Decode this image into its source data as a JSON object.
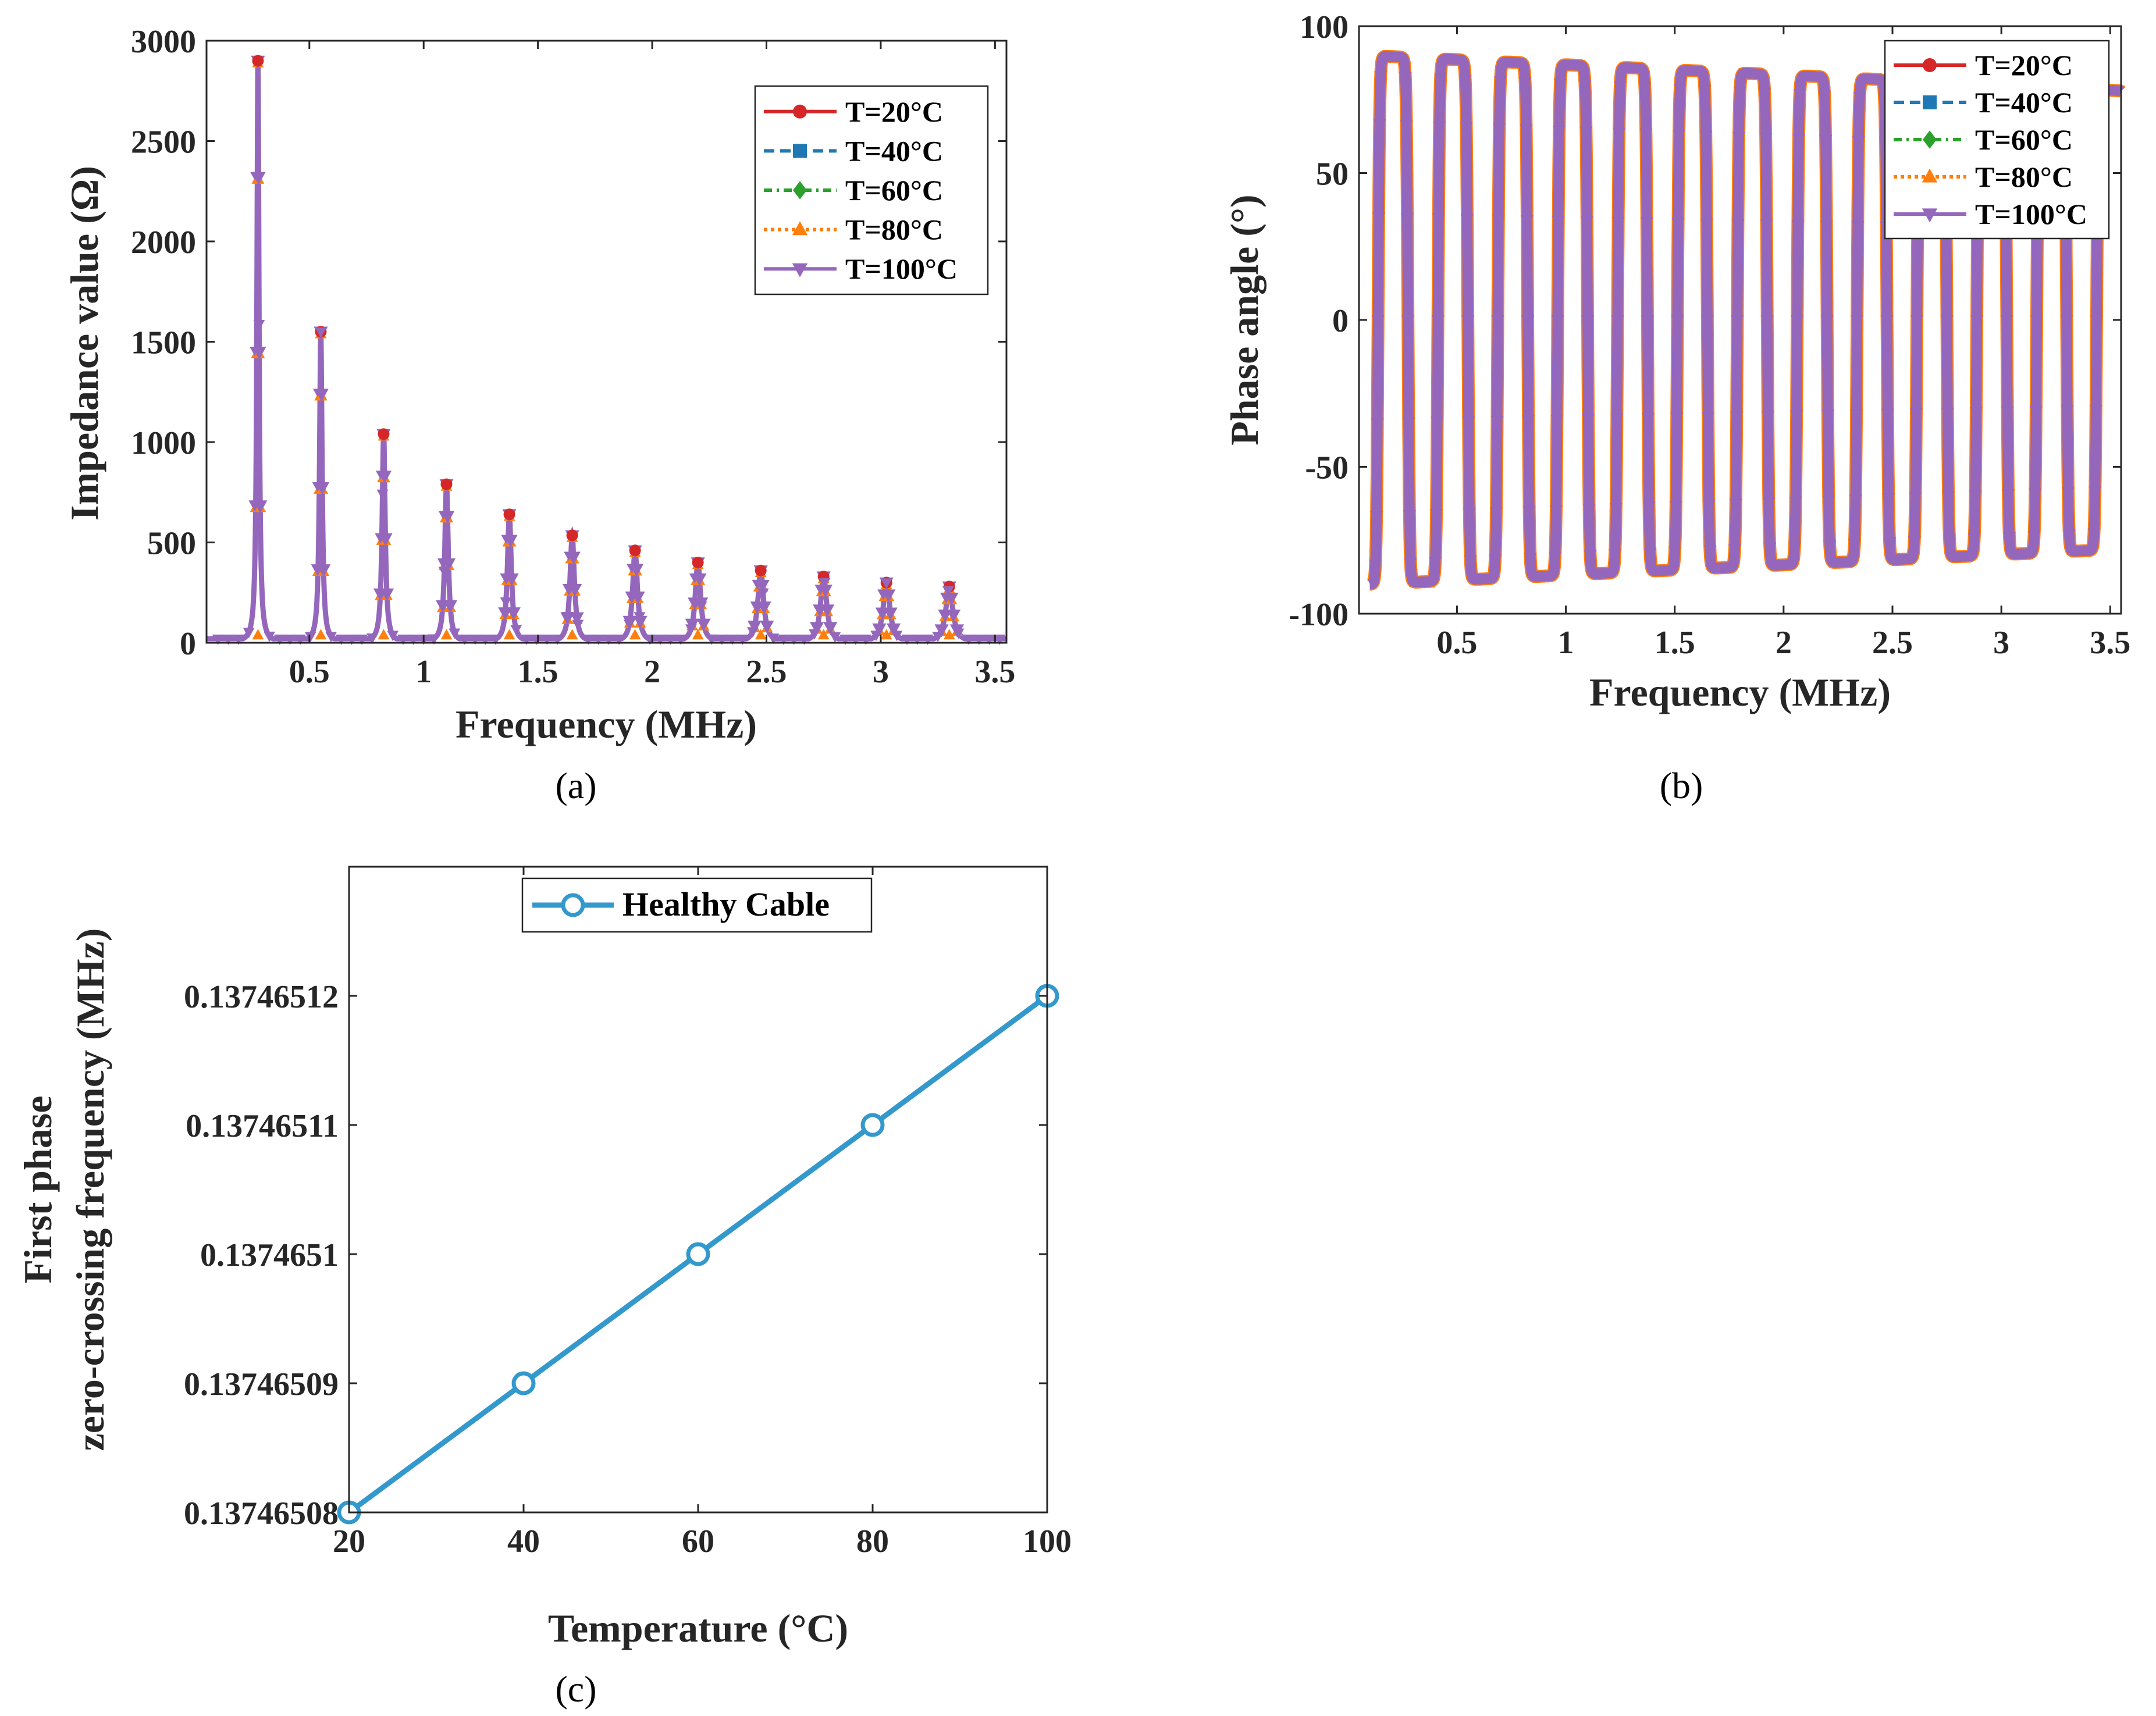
{
  "colors": {
    "T20": "#d62728",
    "T40": "#1f77b4",
    "T60": "#2ca02c",
    "T80": "#ff7f0e",
    "T100": "#9467bd",
    "healthy": "#3399cc"
  },
  "panel_a": {
    "label": "(a)",
    "xlabel": "Frequency (MHz)",
    "ylabel": "Impedance value (Ω)",
    "xticks": [
      "0.5",
      "1",
      "1.5",
      "2",
      "2.5",
      "3",
      "3.5"
    ],
    "yticks": [
      "0",
      "500",
      "1000",
      "1500",
      "2000",
      "2500",
      "3000"
    ],
    "legend": [
      "T=20°C",
      "T=40°C",
      "T=60°C",
      "T=80°C",
      "T=100°C"
    ]
  },
  "panel_b": {
    "label": "(b)",
    "xlabel": "Frequency (MHz)",
    "ylabel": "Phase angle (°)",
    "xticks": [
      "0.5",
      "1",
      "1.5",
      "2",
      "2.5",
      "3",
      "3.5"
    ],
    "yticks": [
      "-100",
      "-50",
      "0",
      "50",
      "100"
    ],
    "legend": [
      "T=20°C",
      "T=40°C",
      "T=60°C",
      "T=80°C",
      "T=100°C"
    ]
  },
  "panel_c": {
    "label": "(c)",
    "xlabel": "Temperature (°C)",
    "ylabel_line1": "First phase",
    "ylabel_line2": "zero-crossing frequency (MHz)",
    "xticks": [
      "20",
      "40",
      "60",
      "80",
      "100"
    ],
    "yticks": [
      "0.13746508",
      "0.13746509",
      "0.1374651",
      "0.13746511",
      "0.13746512"
    ],
    "legend": [
      "Healthy Cable"
    ]
  },
  "chart_data": [
    {
      "type": "line",
      "xlabel": "Frequency (MHz)",
      "ylabel": "Impedance value (Ω)",
      "xlim": [
        0.05,
        3.55
      ],
      "ylim": [
        0,
        3000
      ],
      "grid": false,
      "legend_position": "top-right",
      "series_names": [
        "T=20°C",
        "T=40°C",
        "T=60°C",
        "T=80°C",
        "T=100°C"
      ],
      "resonance_peaks": {
        "x": [
          0.275,
          0.55,
          0.825,
          1.1,
          1.375,
          1.65,
          1.925,
          2.2,
          2.475,
          2.75,
          3.025,
          3.3
        ],
        "y": [
          2900,
          1550,
          1040,
          790,
          640,
          535,
          460,
          400,
          360,
          330,
          300,
          280
        ]
      },
      "trough_level": 20
    },
    {
      "type": "line",
      "xlabel": "Frequency (MHz)",
      "ylabel": "Phase angle (°)",
      "xlim": [
        0.05,
        3.55
      ],
      "ylim": [
        -100,
        100
      ],
      "grid": false,
      "legend_position": "top-right",
      "series_names": [
        "T=20°C",
        "T=40°C",
        "T=60°C",
        "T=80°C",
        "T=100°C"
      ],
      "oscillation_period_mhz": 0.275,
      "first_zero_crossing_mhz": 0.1375,
      "max_envelope": {
        "x": [
          0.1,
          3.55
        ],
        "y": [
          90,
          78
        ]
      },
      "min_envelope": {
        "x": [
          0.1,
          3.55
        ],
        "y": [
          -90,
          -78
        ]
      }
    },
    {
      "type": "line",
      "xlabel": "Temperature (°C)",
      "ylabel": "First phase zero-crossing frequency (MHz)",
      "xlim": [
        20,
        100
      ],
      "ylim": [
        0.13746508,
        0.13746513
      ],
      "grid": false,
      "legend_position": "top-center",
      "series": [
        {
          "name": "Healthy Cable",
          "x": [
            20,
            40,
            60,
            80,
            100
          ],
          "y": [
            0.13746508,
            0.13746509,
            0.1374651,
            0.13746511,
            0.13746512
          ]
        }
      ]
    }
  ]
}
